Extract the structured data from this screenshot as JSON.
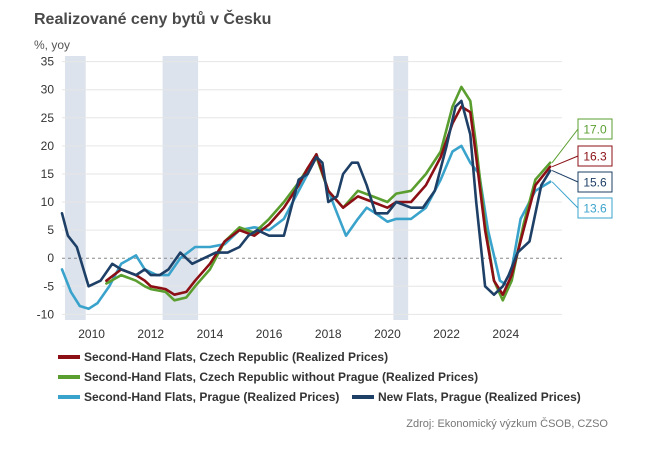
{
  "chart_data": {
    "type": "line",
    "title": "Realizované ceny bytů v Česku",
    "ylabel": "%, yoy",
    "ylim": [
      -11,
      36
    ],
    "xlim": [
      2009.0,
      2025.9
    ],
    "y_ticks": [
      35,
      30,
      25,
      20,
      15,
      10,
      5,
      0,
      -5,
      -10
    ],
    "x_ticks": [
      2010,
      2012,
      2014,
      2016,
      2018,
      2020,
      2022,
      2024
    ],
    "shaded_periods": [
      [
        2009.1,
        2009.8
      ],
      [
        2012.4,
        2013.6
      ],
      [
        2020.2,
        2020.7
      ]
    ],
    "source": "Zdroj: Ekonomický výzkum ČSOB, CZSO",
    "series": [
      {
        "name": "Second-Hand Flats, Czech Republic (Realized Prices)",
        "color": "#8b0f14",
        "end_label": "16.3",
        "points": [
          [
            2010.5,
            -4
          ],
          [
            2011.0,
            -2
          ],
          [
            2011.5,
            -3
          ],
          [
            2011.8,
            -4
          ],
          [
            2012.0,
            -5
          ],
          [
            2012.5,
            -5.5
          ],
          [
            2012.8,
            -6.5
          ],
          [
            2013.2,
            -6
          ],
          [
            2013.5,
            -4
          ],
          [
            2014.0,
            -1
          ],
          [
            2014.5,
            3
          ],
          [
            2015.0,
            5
          ],
          [
            2015.5,
            4
          ],
          [
            2016.0,
            6
          ],
          [
            2016.5,
            9
          ],
          [
            2017.0,
            13
          ],
          [
            2017.3,
            16
          ],
          [
            2017.6,
            18.5
          ],
          [
            2018.0,
            12
          ],
          [
            2018.5,
            9
          ],
          [
            2019.0,
            11
          ],
          [
            2019.5,
            10
          ],
          [
            2020.0,
            9
          ],
          [
            2020.3,
            10
          ],
          [
            2020.8,
            10
          ],
          [
            2021.3,
            13
          ],
          [
            2021.8,
            18
          ],
          [
            2022.2,
            24
          ],
          [
            2022.5,
            27
          ],
          [
            2022.8,
            26
          ],
          [
            2023.0,
            18
          ],
          [
            2023.3,
            5
          ],
          [
            2023.6,
            -4
          ],
          [
            2023.9,
            -6.5
          ],
          [
            2024.2,
            -3
          ],
          [
            2024.6,
            5
          ],
          [
            2025.0,
            13
          ],
          [
            2025.5,
            16.3
          ]
        ]
      },
      {
        "name": "Second-Hand Flats, Czech Republic without Prague (Realized Prices)",
        "color": "#5a9e2f",
        "end_label": "17.0",
        "points": [
          [
            2010.5,
            -4.5
          ],
          [
            2011.0,
            -3
          ],
          [
            2011.5,
            -4
          ],
          [
            2011.8,
            -5
          ],
          [
            2012.0,
            -5.5
          ],
          [
            2012.5,
            -6
          ],
          [
            2012.8,
            -7.5
          ],
          [
            2013.2,
            -7
          ],
          [
            2013.5,
            -5
          ],
          [
            2014.0,
            -2
          ],
          [
            2014.5,
            3
          ],
          [
            2015.0,
            5.5
          ],
          [
            2015.5,
            4.5
          ],
          [
            2016.0,
            7
          ],
          [
            2016.5,
            10
          ],
          [
            2017.0,
            13.5
          ],
          [
            2017.3,
            16
          ],
          [
            2017.6,
            18
          ],
          [
            2018.0,
            12
          ],
          [
            2018.5,
            9
          ],
          [
            2019.0,
            12
          ],
          [
            2019.5,
            11
          ],
          [
            2020.0,
            10
          ],
          [
            2020.3,
            11.5
          ],
          [
            2020.8,
            12
          ],
          [
            2021.3,
            15
          ],
          [
            2021.8,
            19
          ],
          [
            2022.2,
            27
          ],
          [
            2022.5,
            30.5
          ],
          [
            2022.8,
            28
          ],
          [
            2023.0,
            20
          ],
          [
            2023.3,
            6
          ],
          [
            2023.6,
            -4
          ],
          [
            2023.9,
            -7.5
          ],
          [
            2024.2,
            -4
          ],
          [
            2024.6,
            6
          ],
          [
            2025.0,
            14
          ],
          [
            2025.5,
            17.0
          ]
        ]
      },
      {
        "name": "Second-Hand Flats, Prague (Realized Prices)",
        "color": "#3aa3cc",
        "end_label": "13.6",
        "points": [
          [
            2009.0,
            -2
          ],
          [
            2009.3,
            -6
          ],
          [
            2009.6,
            -8.5
          ],
          [
            2009.9,
            -9
          ],
          [
            2010.2,
            -8
          ],
          [
            2010.6,
            -5
          ],
          [
            2011.0,
            -1
          ],
          [
            2011.5,
            0.5
          ],
          [
            2011.8,
            -2
          ],
          [
            2012.2,
            -3
          ],
          [
            2012.6,
            -3
          ],
          [
            2013.0,
            0
          ],
          [
            2013.5,
            2
          ],
          [
            2014.0,
            2
          ],
          [
            2014.5,
            2.5
          ],
          [
            2015.0,
            5
          ],
          [
            2015.5,
            5.5
          ],
          [
            2016.0,
            5
          ],
          [
            2016.5,
            7
          ],
          [
            2017.0,
            12
          ],
          [
            2017.3,
            15
          ],
          [
            2017.6,
            18.5
          ],
          [
            2018.0,
            12
          ],
          [
            2018.3,
            8
          ],
          [
            2018.6,
            4
          ],
          [
            2019.0,
            7
          ],
          [
            2019.3,
            9
          ],
          [
            2019.6,
            8
          ],
          [
            2020.0,
            6.5
          ],
          [
            2020.3,
            7
          ],
          [
            2020.8,
            7
          ],
          [
            2021.3,
            9
          ],
          [
            2021.8,
            14
          ],
          [
            2022.2,
            19
          ],
          [
            2022.5,
            20
          ],
          [
            2022.8,
            17
          ],
          [
            2023.1,
            15
          ],
          [
            2023.4,
            5
          ],
          [
            2023.8,
            -4
          ],
          [
            2024.1,
            -5
          ],
          [
            2024.5,
            7
          ],
          [
            2025.0,
            12
          ],
          [
            2025.5,
            13.6
          ]
        ]
      },
      {
        "name": "New Flats, Prague (Realized Prices)",
        "color": "#1e3f66",
        "end_label": "15.6",
        "points": [
          [
            2009.0,
            8
          ],
          [
            2009.2,
            4
          ],
          [
            2009.5,
            2
          ],
          [
            2009.9,
            -5
          ],
          [
            2010.3,
            -4
          ],
          [
            2010.7,
            -1
          ],
          [
            2011.0,
            -2
          ],
          [
            2011.5,
            -3
          ],
          [
            2011.8,
            -2
          ],
          [
            2012.0,
            -3
          ],
          [
            2012.3,
            -3
          ],
          [
            2012.6,
            -2
          ],
          [
            2013.0,
            1
          ],
          [
            2013.4,
            -1
          ],
          [
            2013.8,
            0
          ],
          [
            2014.2,
            1
          ],
          [
            2014.6,
            1
          ],
          [
            2015.0,
            2
          ],
          [
            2015.3,
            4
          ],
          [
            2015.6,
            5
          ],
          [
            2016.0,
            4
          ],
          [
            2016.5,
            4
          ],
          [
            2017.0,
            14
          ],
          [
            2017.3,
            15
          ],
          [
            2017.6,
            18
          ],
          [
            2017.8,
            17
          ],
          [
            2018.0,
            10
          ],
          [
            2018.3,
            11
          ],
          [
            2018.5,
            15
          ],
          [
            2018.8,
            17
          ],
          [
            2019.0,
            17
          ],
          [
            2019.3,
            13
          ],
          [
            2019.6,
            8
          ],
          [
            2020.0,
            8
          ],
          [
            2020.3,
            10
          ],
          [
            2020.8,
            9
          ],
          [
            2021.2,
            9
          ],
          [
            2021.6,
            12
          ],
          [
            2022.0,
            20
          ],
          [
            2022.3,
            27
          ],
          [
            2022.5,
            28
          ],
          [
            2022.8,
            22
          ],
          [
            2023.0,
            10
          ],
          [
            2023.3,
            -5
          ],
          [
            2023.6,
            -6.5
          ],
          [
            2023.9,
            -5
          ],
          [
            2024.1,
            -3
          ],
          [
            2024.4,
            1
          ],
          [
            2024.8,
            3
          ],
          [
            2025.2,
            13
          ],
          [
            2025.5,
            15.6
          ]
        ]
      }
    ]
  }
}
